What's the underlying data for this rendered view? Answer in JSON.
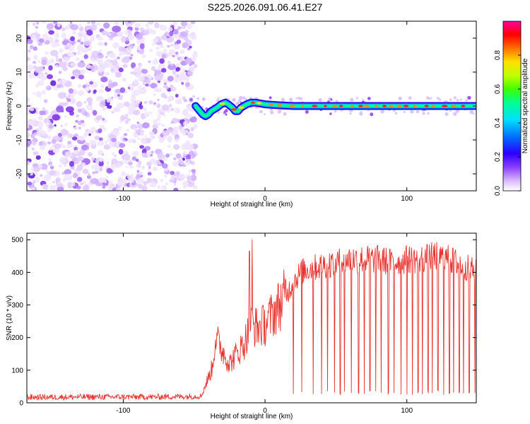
{
  "title": "S225.2026.091.06.41.E27",
  "chart_data": [
    {
      "type": "heatmap",
      "title": "S225.2026.091.06.41.E27",
      "xlabel": "Height of straight line (km)",
      "ylabel": "Frequency (Hz)",
      "xlim": [
        -168,
        149
      ],
      "ylim": [
        -25,
        25
      ],
      "x_ticks": [
        "-100",
        "0",
        "100"
      ],
      "y_ticks": [
        "-20",
        "-10",
        "0",
        "10",
        "20"
      ],
      "noise_region_x": [
        -168,
        -49
      ],
      "signal_ridge": {
        "x": [
          -49,
          -46,
          -44,
          -42,
          -40,
          -38,
          -36,
          -34,
          -31,
          -28,
          -26,
          -23,
          -21,
          -19,
          -17,
          -15,
          -13,
          -10,
          -7,
          -4,
          0,
          10,
          20,
          40,
          60,
          80,
          100,
          120,
          140,
          149
        ],
        "freq": [
          0,
          -1.5,
          -2.5,
          -3,
          -2.5,
          -1.5,
          -1,
          -0.5,
          0.5,
          1,
          0.5,
          -0.5,
          -1.5,
          -1.5,
          -0.5,
          0,
          0.5,
          1,
          1,
          0.8,
          0.5,
          0.2,
          0,
          0,
          0,
          0,
          0,
          0,
          0,
          0
        ]
      },
      "colorbar": {
        "label": "Normalized spectral amplitude",
        "ticks": [
          "0.0",
          "0.2",
          "0.4",
          "0.6",
          "0.8"
        ],
        "range": [
          0,
          1
        ]
      }
    },
    {
      "type": "line",
      "xlabel": "Height of straight line (km)",
      "ylabel": "SNR (10 * v/v)",
      "xlim": [
        -168,
        149
      ],
      "ylim": [
        0,
        520
      ],
      "x_ticks": [
        "-100",
        "0",
        "100"
      ],
      "y_ticks": [
        "0",
        "100",
        "200",
        "300",
        "400",
        "500"
      ],
      "series": [
        {
          "name": "SNR",
          "color": "#e8332e",
          "envelope": {
            "x": [
              -168,
              -120,
              -80,
              -45,
              -37,
              -35,
              -30,
              -25,
              -20,
              -15,
              -10,
              -5,
              0,
              5,
              10,
              15,
              20,
              25,
              30,
              40,
              50,
              60,
              70,
              80,
              90,
              100,
              110,
              120,
              130,
              140,
              149
            ],
            "mean": [
              17,
              18,
              18,
              20,
              110,
              200,
              160,
              120,
              150,
              180,
              240,
              230,
              240,
              270,
              300,
              330,
              370,
              400,
              410,
              420,
              430,
              440,
              440,
              440,
              430,
              440,
              440,
              450,
              440,
              420,
              400
            ]
          },
          "spikes_x": [
            -9,
            -11
          ],
          "spikes_value": [
            500,
            465
          ],
          "dropouts_x": [
            20,
            26,
            34,
            40,
            44,
            49,
            53,
            56,
            61,
            66,
            70,
            74,
            78,
            82,
            87,
            91,
            96,
            100,
            104,
            108,
            111,
            115,
            118,
            122,
            126,
            130,
            133,
            137,
            140,
            144,
            148
          ]
        }
      ]
    }
  ]
}
